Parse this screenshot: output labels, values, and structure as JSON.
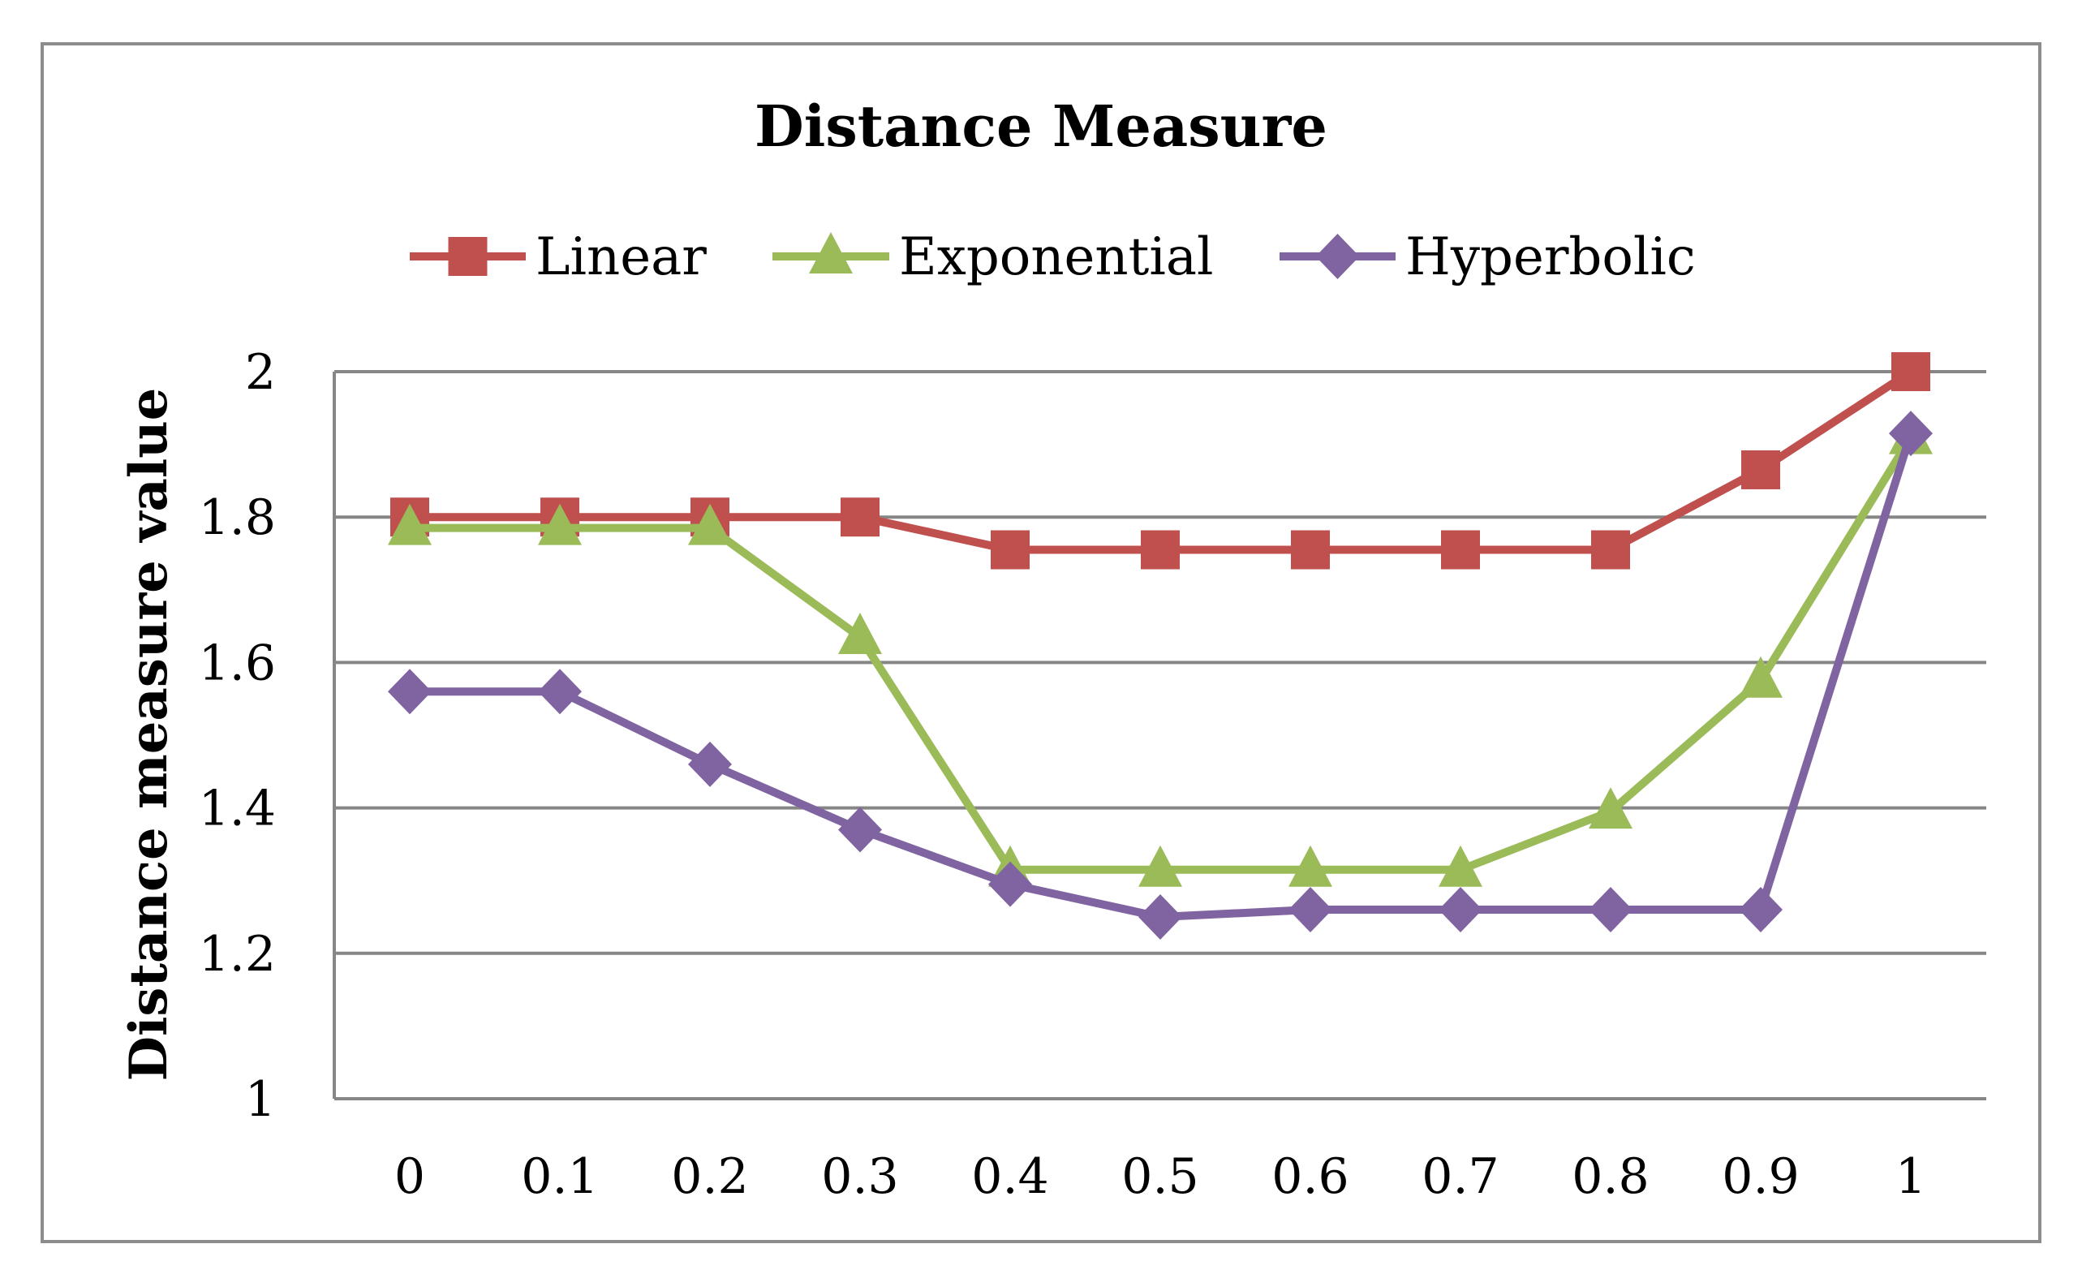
{
  "chart_data": {
    "type": "line",
    "title": "Distance Measure",
    "xlabel": "",
    "ylabel": "Distance measure value",
    "categories": [
      "0",
      "0.1",
      "0.2",
      "0.3",
      "0.4",
      "0.5",
      "0.6",
      "0.7",
      "0.8",
      "0.9",
      "1"
    ],
    "ylim": [
      1,
      2
    ],
    "yticks": [
      "1",
      "1.2",
      "1.4",
      "1.6",
      "1.8",
      "2"
    ],
    "ytick_values": [
      1,
      1.2,
      1.4,
      1.6,
      1.8,
      2
    ],
    "grid": true,
    "legend_position": "top",
    "series": [
      {
        "name": "Linear",
        "color": "#c0504d",
        "marker": "square",
        "values": [
          1.8,
          1.8,
          1.8,
          1.8,
          1.755,
          1.755,
          1.755,
          1.755,
          1.755,
          1.865,
          2.0
        ]
      },
      {
        "name": "Exponential",
        "color": "#9bbb59",
        "marker": "triangle",
        "values": [
          1.785,
          1.785,
          1.785,
          1.635,
          1.315,
          1.315,
          1.315,
          1.315,
          1.395,
          1.575,
          1.91
        ]
      },
      {
        "name": "Hyperbolic",
        "color": "#8064a2",
        "marker": "diamond",
        "values": [
          1.56,
          1.56,
          1.46,
          1.37,
          1.295,
          1.25,
          1.26,
          1.26,
          1.26,
          1.26,
          1.915
        ]
      }
    ]
  }
}
